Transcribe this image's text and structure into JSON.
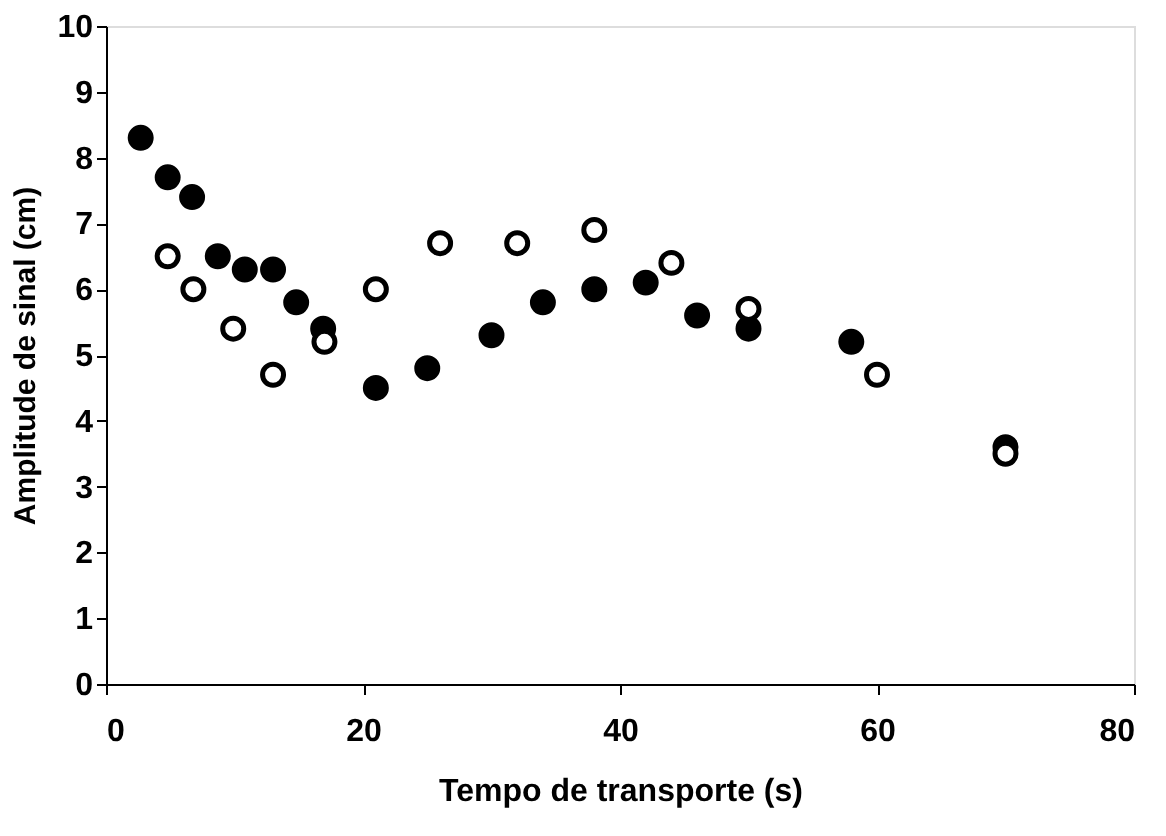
{
  "chart_data": {
    "type": "scatter",
    "xlabel": "Tempo de transporte (s)",
    "ylabel": "Amplitude de sinal (cm)",
    "xlim": [
      0,
      80
    ],
    "xticks": [
      0,
      20,
      40,
      60,
      80
    ],
    "ylim": [
      0,
      10
    ],
    "yticks": [
      0,
      1,
      2,
      3,
      4,
      5,
      6,
      7,
      8,
      9,
      10
    ],
    "grid": false,
    "marker": "circle",
    "series": [
      {
        "color": "#000000",
        "x": [
          2.7,
          4.8,
          6.7,
          8.7,
          10.8,
          13,
          14.8,
          16.9,
          21,
          25,
          30,
          34,
          38,
          42,
          46,
          50,
          58,
          70
        ],
        "values": [
          8.3,
          7.7,
          7.4,
          6.5,
          6.3,
          6.3,
          5.8,
          5.4,
          4.5,
          4.8,
          5.3,
          5.8,
          6.0,
          6.1,
          5.6,
          5.4,
          5.2,
          3.6
        ]
      },
      {
        "color": "#ffffff",
        "x": [
          4.8,
          6.8,
          9.9,
          13,
          17,
          21,
          26,
          32,
          38,
          44,
          50,
          60,
          70
        ],
        "values": [
          6.5,
          6.0,
          5.4,
          4.7,
          5.2,
          6.0,
          6.7,
          6.7,
          6.9,
          6.4,
          5.7,
          4.7,
          3.5
        ]
      }
    ]
  }
}
